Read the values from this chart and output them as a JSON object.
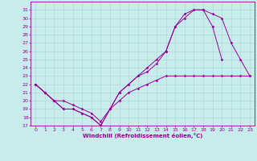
{
  "xlabel": "Windchill (Refroidissement éolien,°C)",
  "background_color": "#c8ecec",
  "grid_color": "#b0d8d8",
  "line_color": "#990099",
  "xlim": [
    -0.5,
    23.5
  ],
  "ylim": [
    17,
    32
  ],
  "xticks": [
    0,
    1,
    2,
    3,
    4,
    5,
    6,
    7,
    8,
    9,
    10,
    11,
    12,
    13,
    14,
    15,
    16,
    17,
    18,
    19,
    20,
    21,
    22,
    23
  ],
  "yticks": [
    17,
    18,
    19,
    20,
    21,
    22,
    23,
    24,
    25,
    26,
    27,
    28,
    29,
    30,
    31
  ],
  "line1_x": [
    0,
    1,
    2,
    3,
    4,
    5,
    6,
    7,
    8,
    9,
    10,
    11,
    12,
    13,
    14,
    15,
    16,
    17,
    18,
    19,
    20,
    21,
    22,
    23
  ],
  "line1_y": [
    22,
    21,
    20,
    20,
    19.5,
    19,
    18.5,
    17.5,
    19,
    20,
    21,
    21.5,
    22,
    22.5,
    23,
    23,
    23,
    23,
    23,
    23,
    23,
    23,
    23,
    23
  ],
  "line2_x": [
    0,
    1,
    2,
    3,
    4,
    5,
    6,
    7,
    8,
    9,
    10,
    11,
    12,
    13,
    14,
    15,
    16,
    17,
    18,
    19,
    20
  ],
  "line2_y": [
    22,
    21,
    20,
    19,
    19,
    18.5,
    18,
    17,
    19,
    21,
    22,
    23,
    23.5,
    24.5,
    26,
    29,
    30,
    31,
    31,
    29,
    25
  ],
  "line3_x": [
    0,
    1,
    2,
    3,
    4,
    5,
    6,
    7,
    8,
    9,
    10,
    11,
    12,
    13,
    14,
    15,
    16,
    17,
    18,
    19,
    20,
    21,
    22,
    23
  ],
  "line3_y": [
    22,
    21,
    20,
    19,
    19,
    18.5,
    18,
    17,
    19,
    21,
    22,
    23,
    24,
    25,
    26,
    29,
    30.5,
    31,
    31,
    30.5,
    30,
    27,
    25,
    23
  ]
}
